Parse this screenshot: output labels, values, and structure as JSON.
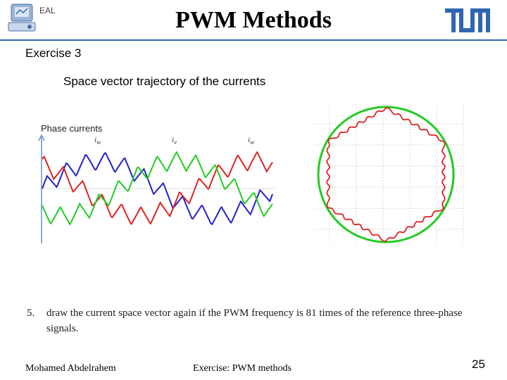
{
  "header": {
    "title": "PWM Methods",
    "logo_left_text": "EAL",
    "logo_right_name": "tum-logo"
  },
  "exercise": "Exercise 3",
  "subtitle": "Space vector trajectory of the currents",
  "phase_plot": {
    "label": "Phase currents",
    "current_labels": [
      "i",
      "i",
      "i"
    ],
    "current_subscripts": [
      "w",
      "v",
      "w"
    ],
    "colors": {
      "phase_1": "#2222cc",
      "phase_2": "#dd2222",
      "phase_3": "#22cc22"
    }
  },
  "trajectory_plot": {
    "circle_color": "#22cc22",
    "trajectory_color": "#dd2222"
  },
  "task": {
    "number": "5.",
    "text": "draw the current space vector again if the PWM frequency is 81 times of the reference three-phase signals."
  },
  "footer": {
    "author": "Mohamed Abdelrahem",
    "course": "Exercise: PWM methods",
    "page": "25"
  }
}
